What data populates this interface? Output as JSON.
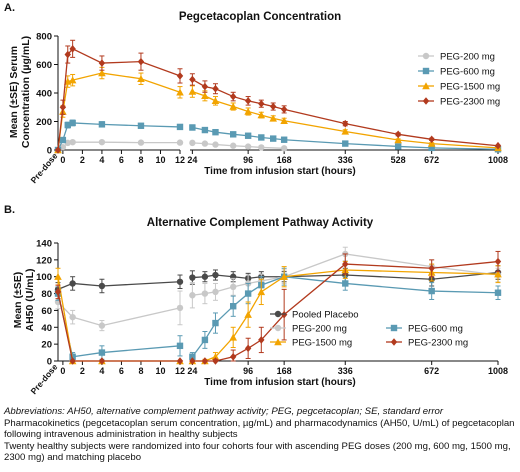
{
  "panel_a_label": "A.",
  "panel_b_label": "B.",
  "footnotes": {
    "abbreviations": "Abbreviations: AH50, alternative complement pathway activity; PEG, pegcetacoplan; SE, standard error",
    "line1": "Pharmacokinetics (pegcetacoplan serum concentration, µg/mL) and pharmacodynamics (AH50, U/mL) of pegcetacoplan following intravenous administration in healthy subjects",
    "line2": "Twenty healthy subjects were randomized into four cohorts four with ascending PEG doses (200 mg, 600 mg, 1500 mg, 2300 mg) and matching placebo"
  },
  "chart_data": [
    {
      "type": "line",
      "title": "Pegcetacoplan Concentration",
      "ylabel": "Mean (±SE) Serum Concentration (µg/mL)",
      "xlabel": "Time from infusion start (hours)",
      "ylim": [
        0,
        800
      ],
      "yticks": [
        0,
        200,
        400,
        600,
        800
      ],
      "grid": false,
      "legend_position": "right",
      "x_segments": [
        {
          "from": -0.5,
          "to": 12,
          "ticks": [
            0,
            2,
            4,
            6,
            8,
            10,
            12
          ]
        },
        {
          "from": 22,
          "to": 1008,
          "ticks": [
            24,
            96,
            168,
            336,
            528,
            672,
            1008
          ],
          "scale": "sqrt"
        }
      ],
      "predose_label": "Pre-dose",
      "series": [
        {
          "name": "PEG-200 mg",
          "color": "#c8c8c8",
          "marker": "circle",
          "x": [
            -0.5,
            0,
            0.5,
            1,
            4,
            8,
            12,
            24,
            36,
            48,
            72,
            96,
            120,
            168
          ],
          "y": [
            0,
            20,
            50,
            55,
            55,
            52,
            52,
            50,
            45,
            38,
            30,
            24,
            18,
            12
          ],
          "err": [
            0,
            5,
            8,
            10,
            8,
            6,
            6,
            8,
            6,
            5,
            4,
            3,
            2,
            2
          ]
        },
        {
          "name": "PEG-600 mg",
          "color": "#5a9ab3",
          "marker": "square",
          "x": [
            -0.5,
            0,
            0.5,
            1,
            4,
            8,
            12,
            24,
            36,
            48,
            72,
            96,
            120,
            144,
            168,
            336,
            528,
            672,
            1008
          ],
          "y": [
            0,
            70,
            175,
            190,
            180,
            170,
            162,
            158,
            140,
            125,
            110,
            100,
            88,
            80,
            72,
            45,
            25,
            15,
            5
          ],
          "err": [
            0,
            15,
            20,
            20,
            18,
            15,
            15,
            18,
            15,
            12,
            10,
            8,
            8,
            6,
            6,
            5,
            3,
            2,
            1
          ]
        },
        {
          "name": "PEG-1500 mg",
          "color": "#f2a400",
          "marker": "triangle",
          "x": [
            -0.5,
            0,
            0.5,
            1,
            4,
            8,
            12,
            24,
            36,
            48,
            72,
            96,
            120,
            144,
            168,
            336,
            528,
            672,
            1008
          ],
          "y": [
            0,
            270,
            480,
            490,
            540,
            500,
            405,
            410,
            380,
            345,
            305,
            270,
            245,
            222,
            205,
            130,
            70,
            45,
            15
          ],
          "err": [
            0,
            40,
            40,
            40,
            40,
            40,
            40,
            40,
            35,
            30,
            25,
            25,
            20,
            18,
            18,
            12,
            8,
            6,
            3
          ]
        },
        {
          "name": "PEG-2300 mg",
          "color": "#b23a1e",
          "marker": "diamond",
          "x": [
            -0.5,
            0,
            0.5,
            1,
            4,
            8,
            12,
            24,
            36,
            48,
            72,
            96,
            120,
            144,
            168,
            336,
            528,
            672,
            1008
          ],
          "y": [
            0,
            300,
            670,
            710,
            610,
            620,
            520,
            495,
            445,
            430,
            375,
            345,
            325,
            305,
            285,
            185,
            110,
            75,
            30
          ],
          "err": [
            0,
            50,
            60,
            60,
            50,
            60,
            50,
            40,
            40,
            35,
            30,
            30,
            25,
            25,
            25,
            15,
            10,
            8,
            5
          ]
        }
      ]
    },
    {
      "type": "line",
      "title": "Alternative Complement Pathway Activity",
      "ylabel": "Mean (±SE) AH50 (U/mL)",
      "xlabel": "Time from infusion start (hours)",
      "ylim": [
        0,
        140
      ],
      "yticks": [
        0,
        20,
        40,
        60,
        80,
        100,
        120,
        140
      ],
      "grid": false,
      "legend_position": "bottom-center",
      "x_segments": [
        {
          "from": -0.5,
          "to": 12,
          "ticks": [
            0,
            2,
            4,
            6,
            8,
            10,
            12
          ]
        },
        {
          "from": 22,
          "to": 1008,
          "ticks": [
            24,
            96,
            168,
            336,
            672,
            1008
          ],
          "scale": "sqrt"
        }
      ],
      "predose_label": "Pre-dose",
      "series": [
        {
          "name": "Pooled Placebo",
          "color": "#4a4a4a",
          "marker": "circle",
          "x": [
            -0.5,
            1,
            4,
            12,
            24,
            36,
            48,
            72,
            96,
            120,
            168,
            336,
            672,
            1008
          ],
          "y": [
            85,
            92,
            89,
            94,
            99,
            100,
            102,
            100,
            98,
            100,
            100,
            102,
            97,
            105
          ],
          "err": [
            8,
            8,
            8,
            8,
            8,
            6,
            6,
            6,
            6,
            6,
            6,
            8,
            8,
            8
          ]
        },
        {
          "name": "PEG-200 mg",
          "color": "#c8c8c8",
          "marker": "circle",
          "x": [
            -0.5,
            1,
            4,
            12,
            24,
            36,
            48,
            72,
            96,
            120,
            168,
            336,
            672,
            1008
          ],
          "y": [
            70,
            52,
            42,
            63,
            78,
            80,
            82,
            88,
            92,
            95,
            100,
            127,
            112,
            102
          ],
          "err": [
            8,
            8,
            6,
            20,
            15,
            12,
            10,
            10,
            10,
            8,
            8,
            8,
            8,
            8
          ]
        },
        {
          "name": "PEG-600 mg",
          "color": "#5a9ab3",
          "marker": "square",
          "x": [
            -0.5,
            1,
            4,
            12,
            24,
            36,
            48,
            72,
            96,
            120,
            168,
            336,
            672,
            1008
          ],
          "y": [
            80,
            5,
            10,
            18,
            5,
            25,
            45,
            65,
            80,
            90,
            100,
            92,
            83,
            81
          ],
          "err": [
            8,
            5,
            8,
            12,
            5,
            10,
            12,
            12,
            12,
            10,
            10,
            8,
            10,
            8
          ]
        },
        {
          "name": "PEG-1500 mg",
          "color": "#f2a400",
          "marker": "triangle",
          "x": [
            -0.5,
            1,
            4,
            12,
            24,
            36,
            48,
            72,
            96,
            120,
            168,
            336,
            672,
            1008
          ],
          "y": [
            100,
            0,
            0,
            0,
            0,
            0,
            5,
            28,
            55,
            82,
            100,
            108,
            105,
            103
          ],
          "err": [
            10,
            0,
            0,
            0,
            0,
            2,
            5,
            12,
            15,
            15,
            12,
            10,
            10,
            10
          ]
        },
        {
          "name": "PEG-2300 mg",
          "color": "#b23a1e",
          "marker": "diamond",
          "x": [
            -0.5,
            1,
            4,
            12,
            24,
            36,
            48,
            72,
            96,
            120,
            168,
            336,
            672,
            1008
          ],
          "y": [
            82,
            0,
            0,
            0,
            0,
            0,
            0,
            5,
            15,
            25,
            55,
            115,
            110,
            118
          ],
          "err": [
            8,
            0,
            0,
            0,
            0,
            0,
            2,
            8,
            12,
            15,
            30,
            12,
            10,
            12
          ]
        }
      ]
    }
  ]
}
